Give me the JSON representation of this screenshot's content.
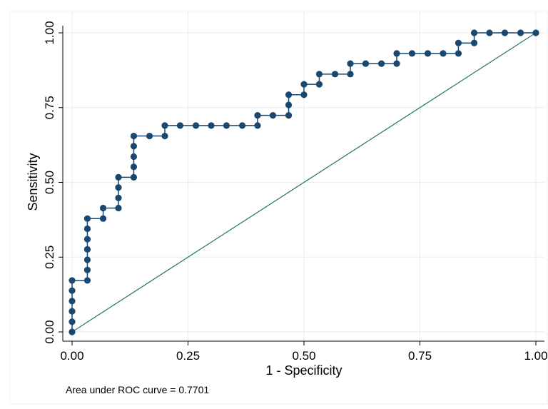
{
  "chart_data": {
    "type": "line",
    "title": "",
    "xlabel": "1 - Specificity",
    "ylabel": "Sensitivity",
    "xlim": [
      0,
      1
    ],
    "ylim": [
      0,
      1
    ],
    "grid": true,
    "xticks": [
      "0.00",
      "0.25",
      "0.50",
      "0.75",
      "1.00"
    ],
    "yticks": [
      "0.00",
      "0.25",
      "0.50",
      "0.75",
      "1.00"
    ],
    "annotation": "Area under ROC curve = 0.7701",
    "colors": {
      "curve": "#1a476f",
      "reference": "#2d7a6a",
      "grid": "#e8f0ef",
      "frame": "#000000"
    },
    "series": [
      {
        "kind": "roc-curve",
        "points": [
          [
            0.0,
            0.0
          ],
          [
            0.0,
            0.034
          ],
          [
            0.0,
            0.069
          ],
          [
            0.0,
            0.103
          ],
          [
            0.0,
            0.138
          ],
          [
            0.0,
            0.172
          ],
          [
            0.033,
            0.172
          ],
          [
            0.033,
            0.207
          ],
          [
            0.033,
            0.241
          ],
          [
            0.033,
            0.276
          ],
          [
            0.033,
            0.31
          ],
          [
            0.033,
            0.345
          ],
          [
            0.033,
            0.379
          ],
          [
            0.067,
            0.379
          ],
          [
            0.067,
            0.414
          ],
          [
            0.1,
            0.414
          ],
          [
            0.1,
            0.448
          ],
          [
            0.1,
            0.483
          ],
          [
            0.1,
            0.517
          ],
          [
            0.133,
            0.517
          ],
          [
            0.133,
            0.552
          ],
          [
            0.133,
            0.586
          ],
          [
            0.133,
            0.621
          ],
          [
            0.133,
            0.655
          ],
          [
            0.167,
            0.655
          ],
          [
            0.2,
            0.655
          ],
          [
            0.2,
            0.69
          ],
          [
            0.233,
            0.69
          ],
          [
            0.267,
            0.69
          ],
          [
            0.3,
            0.69
          ],
          [
            0.333,
            0.69
          ],
          [
            0.367,
            0.69
          ],
          [
            0.4,
            0.69
          ],
          [
            0.4,
            0.724
          ],
          [
            0.433,
            0.724
          ],
          [
            0.467,
            0.724
          ],
          [
            0.467,
            0.759
          ],
          [
            0.467,
            0.793
          ],
          [
            0.5,
            0.793
          ],
          [
            0.5,
            0.828
          ],
          [
            0.533,
            0.828
          ],
          [
            0.533,
            0.862
          ],
          [
            0.567,
            0.862
          ],
          [
            0.6,
            0.862
          ],
          [
            0.6,
            0.897
          ],
          [
            0.633,
            0.897
          ],
          [
            0.667,
            0.897
          ],
          [
            0.7,
            0.897
          ],
          [
            0.7,
            0.931
          ],
          [
            0.733,
            0.931
          ],
          [
            0.767,
            0.931
          ],
          [
            0.8,
            0.931
          ],
          [
            0.833,
            0.931
          ],
          [
            0.833,
            0.966
          ],
          [
            0.867,
            0.966
          ],
          [
            0.867,
            1.0
          ],
          [
            0.9,
            1.0
          ],
          [
            0.933,
            1.0
          ],
          [
            0.967,
            1.0
          ],
          [
            1.0,
            1.0
          ]
        ]
      },
      {
        "kind": "reference-line",
        "points": [
          [
            0,
            0
          ],
          [
            1,
            1
          ]
        ]
      }
    ]
  }
}
